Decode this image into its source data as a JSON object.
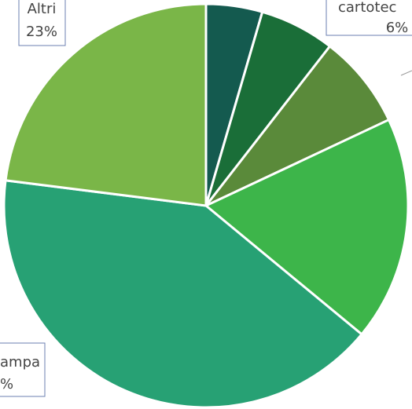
{
  "chart_data": {
    "type": "pie",
    "categories": [
      null,
      "cartotec",
      null,
      null,
      "ampa",
      "Altri"
    ],
    "values": [
      4.5,
      6,
      7.5,
      18,
      41,
      23
    ],
    "value_labels": [
      null,
      "6%",
      null,
      null,
      "%",
      "23%"
    ],
    "colors": [
      "#145a4f",
      "#1a6e38",
      "#5a8a3a",
      "#3db54a",
      "#27a174",
      "#7ab648"
    ]
  }
}
